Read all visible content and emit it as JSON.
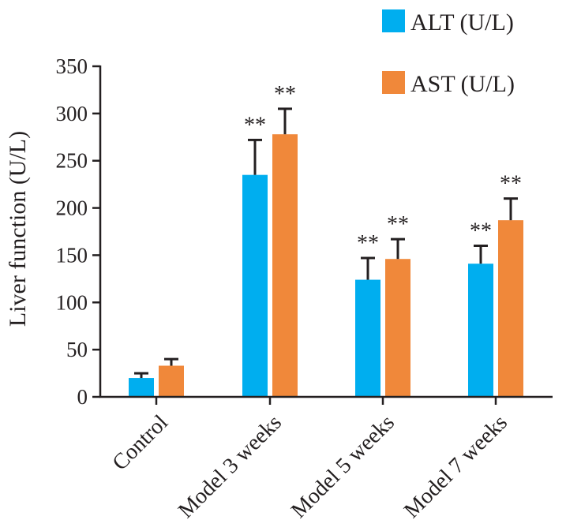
{
  "chart_data": {
    "type": "bar",
    "title": "",
    "xlabel": "",
    "ylabel": "Liver function (U/L)",
    "ylim": [
      0,
      350
    ],
    "yticks": [
      0,
      50,
      100,
      150,
      200,
      250,
      300,
      350
    ],
    "grid": false,
    "legend_position": "top-right",
    "categories": [
      "Control",
      "Model 3 weeks",
      "Model 5 weeks",
      "Model 7 weeks"
    ],
    "series": [
      {
        "name": "ALT (U/L)",
        "color": "#00aeef",
        "values": [
          20,
          235,
          124,
          141
        ],
        "errors": [
          5,
          37,
          23,
          19
        ],
        "significance": [
          "",
          "**",
          "**",
          "**"
        ]
      },
      {
        "name": "AST (U/L)",
        "color": "#f0883a",
        "values": [
          33,
          278,
          146,
          187
        ],
        "errors": [
          7,
          27,
          21,
          23
        ],
        "significance": [
          "",
          "**",
          "**",
          "**"
        ]
      }
    ]
  }
}
